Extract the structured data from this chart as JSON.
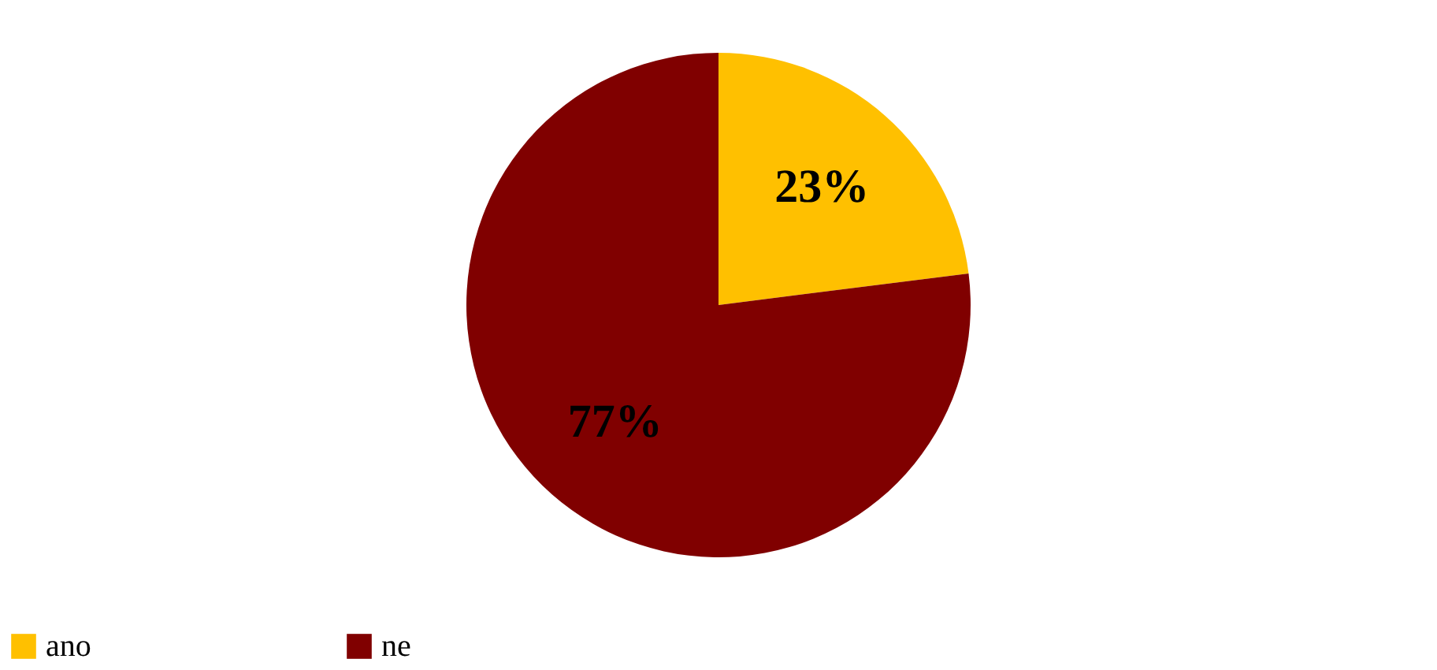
{
  "chart_data": {
    "type": "pie",
    "categories": [
      "ano",
      "ne"
    ],
    "values": [
      23,
      77
    ],
    "colors": [
      "#ffc000",
      "#800000"
    ],
    "value_labels": [
      "23%",
      "77%"
    ],
    "legend": "bottom"
  }
}
